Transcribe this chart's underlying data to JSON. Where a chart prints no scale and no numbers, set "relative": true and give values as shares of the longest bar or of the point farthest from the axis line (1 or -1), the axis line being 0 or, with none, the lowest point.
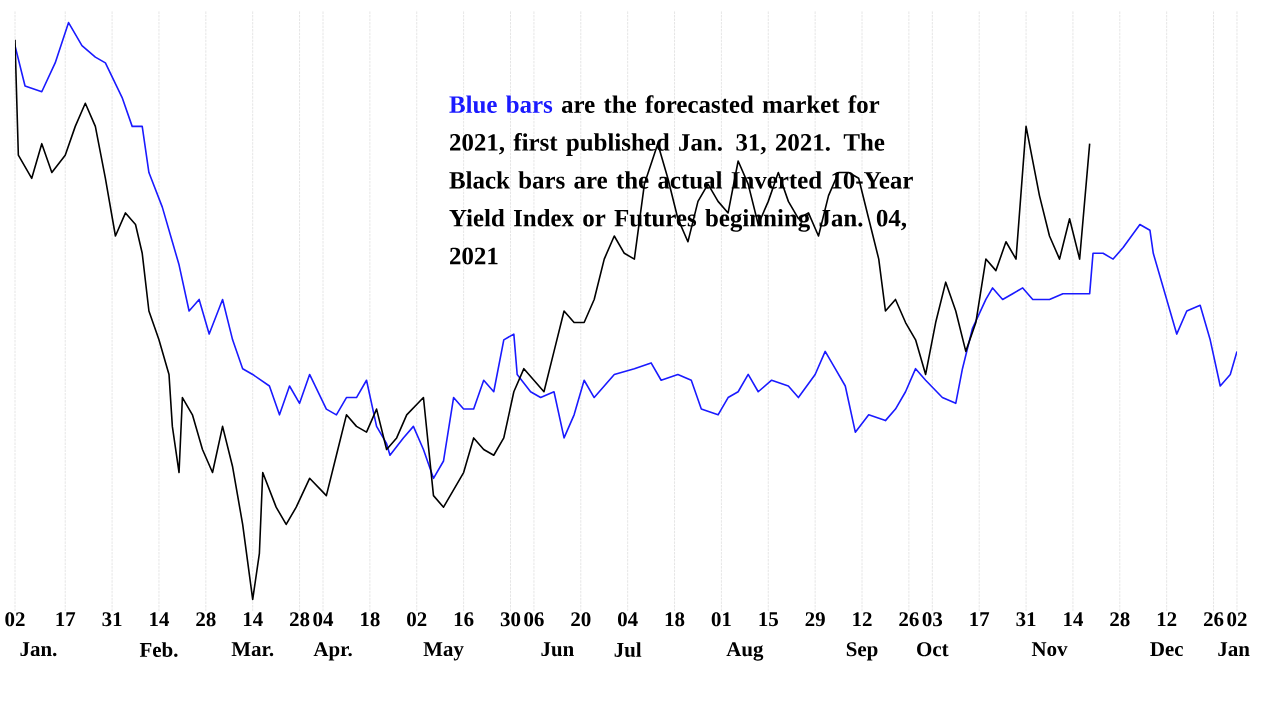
{
  "chart_data": {
    "type": "line",
    "relative": true,
    "grid": "x",
    "marker": "none",
    "line_style": "solid",
    "annotations": [
      "Blue bars",
      "are the forecasted market for 2021, first published Jan. 31, 2021. The Black bars are the actual Inverted 10-Year Yield Index or Futures beginning Jan. 04, 2021"
    ],
    "xlim": [
      "2021-01-02",
      "2022-01-02"
    ],
    "xticks": [
      {
        "value": "2021-01-02",
        "label": "02"
      },
      {
        "value": "2021-01-17",
        "label": "17"
      },
      {
        "value": "2021-01-31",
        "label": "31"
      },
      {
        "value": "2021-02-14",
        "label": "14"
      },
      {
        "value": "2021-02-28",
        "label": "28"
      },
      {
        "value": "2021-03-14",
        "label": "14"
      },
      {
        "value": "2021-03-28",
        "label": "28"
      },
      {
        "value": "2021-04-04",
        "label": "04"
      },
      {
        "value": "2021-04-18",
        "label": "18"
      },
      {
        "value": "2021-05-02",
        "label": "02"
      },
      {
        "value": "2021-05-16",
        "label": "16"
      },
      {
        "value": "2021-05-30",
        "label": "30"
      },
      {
        "value": "2021-06-06",
        "label": "06"
      },
      {
        "value": "2021-06-20",
        "label": "20"
      },
      {
        "value": "2021-07-04",
        "label": "04"
      },
      {
        "value": "2021-07-18",
        "label": "18"
      },
      {
        "value": "2021-08-01",
        "label": "01"
      },
      {
        "value": "2021-08-15",
        "label": "15"
      },
      {
        "value": "2021-08-29",
        "label": "29"
      },
      {
        "value": "2021-09-12",
        "label": "12"
      },
      {
        "value": "2021-09-26",
        "label": "26"
      },
      {
        "value": "2021-10-03",
        "label": "03"
      },
      {
        "value": "2021-10-17",
        "label": "17"
      },
      {
        "value": "2021-10-31",
        "label": "31"
      },
      {
        "value": "2021-11-14",
        "label": "14"
      },
      {
        "value": "2021-11-28",
        "label": "28"
      },
      {
        "value": "2021-12-12",
        "label": "12"
      },
      {
        "value": "2021-12-26",
        "label": "26"
      },
      {
        "value": "2022-01-02",
        "label": "02"
      }
    ],
    "x2ticks": [
      {
        "value": "2021-01-09",
        "label": "Jan."
      },
      {
        "value": "2021-02-14",
        "label": "Feb."
      },
      {
        "value": "2021-03-14",
        "label": "Mar."
      },
      {
        "value": "2021-04-07",
        "label": "Apr."
      },
      {
        "value": "2021-05-10",
        "label": "May"
      },
      {
        "value": "2021-06-13",
        "label": "Jun"
      },
      {
        "value": "2021-07-04",
        "label": "Jul"
      },
      {
        "value": "2021-08-08",
        "label": "Aug"
      },
      {
        "value": "2021-09-12",
        "label": "Sep"
      },
      {
        "value": "2021-10-03",
        "label": "Oct"
      },
      {
        "value": "2021-11-07",
        "label": "Nov"
      },
      {
        "value": "2021-12-12",
        "label": "Dec"
      },
      {
        "value": "2022-01-01",
        "label": "Jan"
      }
    ],
    "x2lim": [
      "2021-01-02",
      "2022-01-02"
    ],
    "series": [
      {
        "color": "#1a1aff",
        "x": [
          "2021-01-02",
          "2021-01-05",
          "2021-01-10",
          "2021-01-14",
          "2021-01-18",
          "2021-01-22",
          "2021-01-26",
          "2021-01-29",
          "2021-02-03",
          "2021-02-06",
          "2021-02-09",
          "2021-02-11",
          "2021-02-15",
          "2021-02-18",
          "2021-02-20",
          "2021-02-23",
          "2021-02-26",
          "2021-03-01",
          "2021-03-05",
          "2021-03-08",
          "2021-03-11",
          "2021-03-14",
          "2021-03-19",
          "2021-03-22",
          "2021-03-25",
          "2021-03-28",
          "2021-03-31",
          "2021-04-05",
          "2021-04-08",
          "2021-04-11",
          "2021-04-14",
          "2021-04-17",
          "2021-04-20",
          "2021-04-23",
          "2021-04-24",
          "2021-04-28",
          "2021-05-01",
          "2021-05-04",
          "2021-05-07",
          "2021-05-10",
          "2021-05-13",
          "2021-05-16",
          "2021-05-19",
          "2021-05-22",
          "2021-05-25",
          "2021-05-28",
          "2021-05-31",
          "2021-06-01",
          "2021-06-05",
          "2021-06-08",
          "2021-06-12",
          "2021-06-15",
          "2021-06-18",
          "2021-06-21",
          "2021-06-24",
          "2021-06-30",
          "2021-07-06",
          "2021-07-11",
          "2021-07-14",
          "2021-07-19",
          "2021-07-23",
          "2021-07-26",
          "2021-07-31",
          "2021-08-03",
          "2021-08-06",
          "2021-08-09",
          "2021-08-12",
          "2021-08-16",
          "2021-08-21",
          "2021-08-24",
          "2021-08-29",
          "2021-09-01",
          "2021-09-04",
          "2021-09-07",
          "2021-09-10",
          "2021-09-14",
          "2021-09-19",
          "2021-09-22",
          "2021-09-25",
          "2021-09-28",
          "2021-10-01",
          "2021-10-06",
          "2021-10-10",
          "2021-10-12",
          "2021-10-15",
          "2021-10-19",
          "2021-10-21",
          "2021-10-24",
          "2021-10-27",
          "2021-10-30",
          "2021-11-02",
          "2021-11-07",
          "2021-11-11",
          "2021-11-16",
          "2021-11-19",
          "2021-11-20",
          "2021-11-23",
          "2021-11-26",
          "2021-11-29",
          "2021-12-04",
          "2021-12-07",
          "2021-12-08",
          "2021-12-12",
          "2021-12-15",
          "2021-12-18",
          "2021-12-22",
          "2021-12-25",
          "2021-12-28",
          "2021-12-31",
          "2022-01-02"
        ],
        "values": [
          0.96,
          0.89,
          0.88,
          0.93,
          1,
          0.96,
          0.94,
          0.93,
          0.87,
          0.82,
          0.82,
          0.74,
          0.68,
          0.62,
          0.58,
          0.5,
          0.52,
          0.46,
          0.52,
          0.45,
          0.4,
          0.39,
          0.37,
          0.32,
          0.37,
          0.34,
          0.39,
          0.33,
          0.32,
          0.35,
          0.35,
          0.38,
          0.3,
          0.27,
          0.25,
          0.28,
          0.3,
          0.26,
          0.21,
          0.24,
          0.35,
          0.33,
          0.33,
          0.38,
          0.36,
          0.45,
          0.46,
          0.39,
          0.36,
          0.35,
          0.36,
          0.28,
          0.32,
          0.38,
          0.35,
          0.39,
          0.4,
          0.41,
          0.38,
          0.39,
          0.38,
          0.33,
          0.32,
          0.35,
          0.36,
          0.39,
          0.36,
          0.38,
          0.37,
          0.35,
          0.39,
          0.43,
          0.4,
          0.37,
          0.29,
          0.32,
          0.31,
          0.33,
          0.36,
          0.4,
          0.38,
          0.35,
          0.34,
          0.4,
          0.47,
          0.52,
          0.54,
          0.52,
          0.53,
          0.54,
          0.52,
          0.52,
          0.53,
          0.53,
          0.53,
          0.6,
          0.6,
          0.59,
          0.61,
          0.65,
          0.64,
          0.6,
          0.52,
          0.46,
          0.5,
          0.51,
          0.45,
          0.37,
          0.39,
          0.43
        ]
      },
      {
        "color": "#000000",
        "x": [
          "2021-01-02",
          "2021-01-03",
          "2021-01-07",
          "2021-01-10",
          "2021-01-13",
          "2021-01-17",
          "2021-01-20",
          "2021-01-23",
          "2021-01-26",
          "2021-01-29",
          "2021-02-01",
          "2021-02-04",
          "2021-02-07",
          "2021-02-09",
          "2021-02-11",
          "2021-02-14",
          "2021-02-17",
          "2021-02-18",
          "2021-02-20",
          "2021-02-21",
          "2021-02-24",
          "2021-02-27",
          "2021-03-02",
          "2021-03-05",
          "2021-03-08",
          "2021-03-11",
          "2021-03-14",
          "2021-03-16",
          "2021-03-17",
          "2021-03-21",
          "2021-03-24",
          "2021-03-27",
          "2021-03-31",
          "2021-04-05",
          "2021-04-08",
          "2021-04-11",
          "2021-04-14",
          "2021-04-17",
          "2021-04-20",
          "2021-04-23",
          "2021-04-26",
          "2021-04-29",
          "2021-05-04",
          "2021-05-07",
          "2021-05-10",
          "2021-05-13",
          "2021-05-16",
          "2021-05-19",
          "2021-05-22",
          "2021-05-25",
          "2021-05-28",
          "2021-05-31",
          "2021-06-03",
          "2021-06-06",
          "2021-06-09",
          "2021-06-12",
          "2021-06-15",
          "2021-06-18",
          "2021-06-21",
          "2021-06-24",
          "2021-06-27",
          "2021-06-30",
          "2021-07-03",
          "2021-07-06",
          "2021-07-09",
          "2021-07-13",
          "2021-07-16",
          "2021-07-19",
          "2021-07-22",
          "2021-07-25",
          "2021-07-28",
          "2021-07-31",
          "2021-08-03",
          "2021-08-06",
          "2021-08-09",
          "2021-08-12",
          "2021-08-15",
          "2021-08-18",
          "2021-08-21",
          "2021-08-24",
          "2021-08-27",
          "2021-08-30",
          "2021-09-02",
          "2021-09-05",
          "2021-09-08",
          "2021-09-11",
          "2021-09-14",
          "2021-09-17",
          "2021-09-19",
          "2021-09-22",
          "2021-09-25",
          "2021-09-28",
          "2021-10-01",
          "2021-10-04",
          "2021-10-07",
          "2021-10-10",
          "2021-10-13",
          "2021-10-16",
          "2021-10-19",
          "2021-10-22",
          "2021-10-25",
          "2021-10-28",
          "2021-10-31",
          "2021-11-04",
          "2021-11-07",
          "2021-11-10",
          "2021-11-13",
          "2021-11-16",
          "2021-11-19"
        ],
        "values": [
          0.97,
          0.77,
          0.73,
          0.79,
          0.74,
          0.77,
          0.82,
          0.86,
          0.82,
          0.73,
          0.63,
          0.67,
          0.65,
          0.6,
          0.5,
          0.45,
          0.39,
          0.3,
          0.22,
          0.35,
          0.32,
          0.26,
          0.22,
          0.3,
          0.23,
          0.13,
          0,
          0.08,
          0.22,
          0.16,
          0.13,
          0.16,
          0.21,
          0.18,
          0.25,
          0.32,
          0.3,
          0.29,
          0.33,
          0.26,
          0.28,
          0.32,
          0.35,
          0.18,
          0.16,
          0.19,
          0.22,
          0.28,
          0.26,
          0.25,
          0.28,
          0.36,
          0.4,
          0.38,
          0.36,
          0.43,
          0.5,
          0.48,
          0.48,
          0.52,
          0.59,
          0.63,
          0.6,
          0.59,
          0.72,
          0.79,
          0.73,
          0.66,
          0.62,
          0.69,
          0.72,
          0.69,
          0.67,
          0.76,
          0.72,
          0.65,
          0.69,
          0.74,
          0.69,
          0.66,
          0.67,
          0.63,
          0.7,
          0.74,
          0.74,
          0.73,
          0.66,
          0.59,
          0.5,
          0.52,
          0.48,
          0.45,
          0.39,
          0.48,
          0.55,
          0.5,
          0.43,
          0.48,
          0.59,
          0.57,
          0.62,
          0.59,
          0.82,
          0.7,
          0.63,
          0.59,
          0.66,
          0.59,
          0.79
        ]
      }
    ]
  }
}
